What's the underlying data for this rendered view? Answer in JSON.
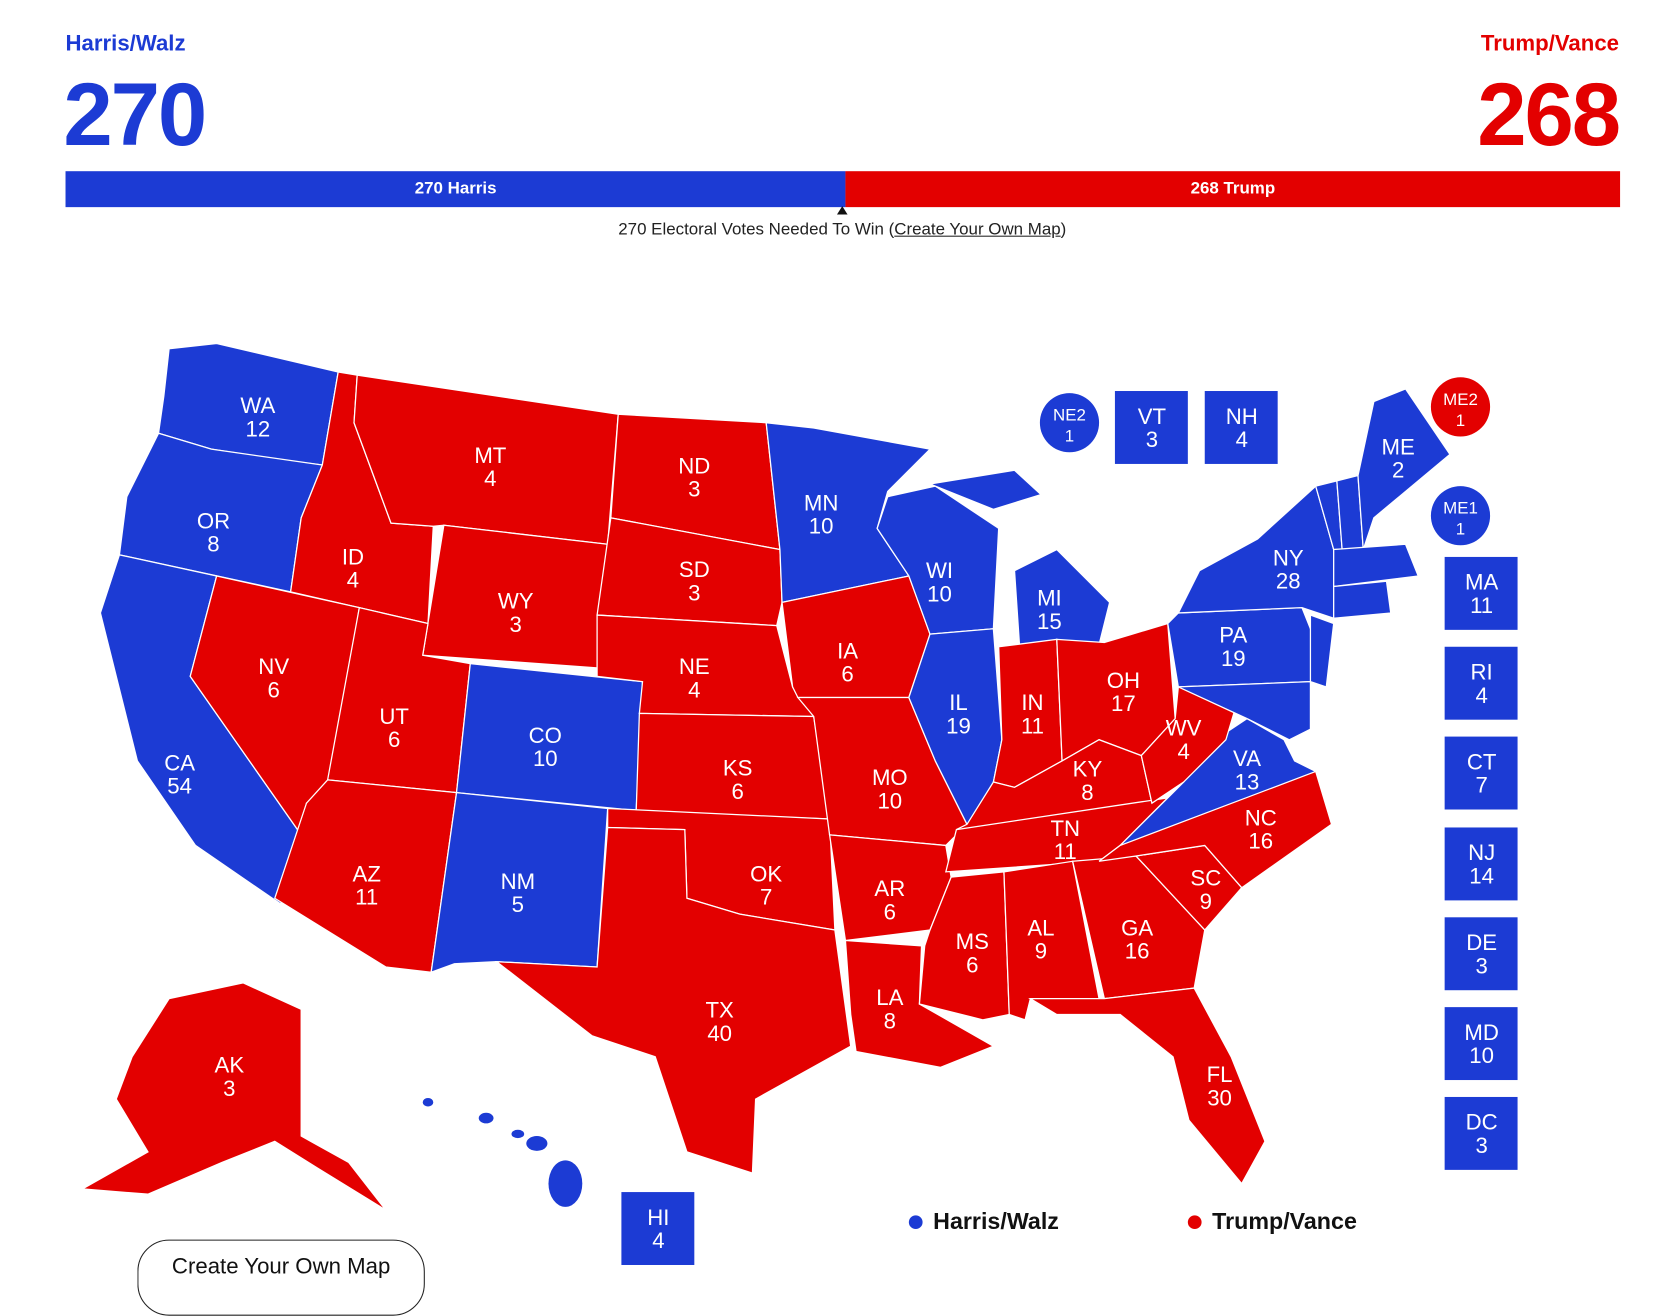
{
  "colors": {
    "dem": "#1c3bd4",
    "rep": "#e30000"
  },
  "header": {
    "dem": {
      "ticket": "Harris/Walz",
      "votes": "270",
      "bar_label": "270 Harris",
      "ev": 270
    },
    "rep": {
      "ticket": "Trump/Vance",
      "votes": "268",
      "bar_label": "268 Trump",
      "ev": 268
    },
    "needed_text": "270 Electoral Votes Needed To Win (",
    "needed_link": "Create Your Own Map",
    "needed_close": ")"
  },
  "states": [
    {
      "abbr": "WA",
      "ev": "12",
      "winner": "dem"
    },
    {
      "abbr": "OR",
      "ev": "8",
      "winner": "dem"
    },
    {
      "abbr": "CA",
      "ev": "54",
      "winner": "dem"
    },
    {
      "abbr": "ID",
      "ev": "4",
      "winner": "rep"
    },
    {
      "abbr": "NV",
      "ev": "6",
      "winner": "rep"
    },
    {
      "abbr": "MT",
      "ev": "4",
      "winner": "rep"
    },
    {
      "abbr": "WY",
      "ev": "3",
      "winner": "rep"
    },
    {
      "abbr": "UT",
      "ev": "6",
      "winner": "rep"
    },
    {
      "abbr": "CO",
      "ev": "10",
      "winner": "dem"
    },
    {
      "abbr": "AZ",
      "ev": "11",
      "winner": "rep"
    },
    {
      "abbr": "NM",
      "ev": "5",
      "winner": "dem"
    },
    {
      "abbr": "ND",
      "ev": "3",
      "winner": "rep"
    },
    {
      "abbr": "SD",
      "ev": "3",
      "winner": "rep"
    },
    {
      "abbr": "NE",
      "ev": "4",
      "winner": "rep"
    },
    {
      "abbr": "KS",
      "ev": "6",
      "winner": "rep"
    },
    {
      "abbr": "OK",
      "ev": "7",
      "winner": "rep"
    },
    {
      "abbr": "TX",
      "ev": "40",
      "winner": "rep"
    },
    {
      "abbr": "MN",
      "ev": "10",
      "winner": "dem"
    },
    {
      "abbr": "IA",
      "ev": "6",
      "winner": "rep"
    },
    {
      "abbr": "MO",
      "ev": "10",
      "winner": "rep"
    },
    {
      "abbr": "AR",
      "ev": "6",
      "winner": "rep"
    },
    {
      "abbr": "LA",
      "ev": "8",
      "winner": "rep"
    },
    {
      "abbr": "WI",
      "ev": "10",
      "winner": "dem"
    },
    {
      "abbr": "IL",
      "ev": "19",
      "winner": "dem"
    },
    {
      "abbr": "MI",
      "ev": "15",
      "winner": "dem"
    },
    {
      "abbr": "IN",
      "ev": "11",
      "winner": "rep"
    },
    {
      "abbr": "OH",
      "ev": "17",
      "winner": "rep"
    },
    {
      "abbr": "KY",
      "ev": "8",
      "winner": "rep"
    },
    {
      "abbr": "TN",
      "ev": "11",
      "winner": "rep"
    },
    {
      "abbr": "MS",
      "ev": "6",
      "winner": "rep"
    },
    {
      "abbr": "AL",
      "ev": "9",
      "winner": "rep"
    },
    {
      "abbr": "GA",
      "ev": "16",
      "winner": "rep"
    },
    {
      "abbr": "SC",
      "ev": "9",
      "winner": "rep"
    },
    {
      "abbr": "NC",
      "ev": "16",
      "winner": "rep"
    },
    {
      "abbr": "FL",
      "ev": "30",
      "winner": "rep"
    },
    {
      "abbr": "VA",
      "ev": "13",
      "winner": "dem"
    },
    {
      "abbr": "WV",
      "ev": "4",
      "winner": "rep"
    },
    {
      "abbr": "PA",
      "ev": "19",
      "winner": "dem"
    },
    {
      "abbr": "NY",
      "ev": "28",
      "winner": "dem"
    },
    {
      "abbr": "ME",
      "ev": "2",
      "winner": "dem"
    },
    {
      "abbr": "AK",
      "ev": "3",
      "winner": "rep"
    }
  ],
  "small_states": [
    {
      "abbr": "NE2",
      "ev": "1",
      "winner": "dem",
      "shape": "circle"
    },
    {
      "abbr": "VT",
      "ev": "3",
      "winner": "dem",
      "shape": "box"
    },
    {
      "abbr": "NH",
      "ev": "4",
      "winner": "dem",
      "shape": "box"
    },
    {
      "abbr": "ME2",
      "ev": "1",
      "winner": "rep",
      "shape": "circle"
    },
    {
      "abbr": "ME1",
      "ev": "1",
      "winner": "dem",
      "shape": "circle"
    },
    {
      "abbr": "MA",
      "ev": "11",
      "winner": "dem",
      "shape": "box"
    },
    {
      "abbr": "RI",
      "ev": "4",
      "winner": "dem",
      "shape": "box"
    },
    {
      "abbr": "CT",
      "ev": "7",
      "winner": "dem",
      "shape": "box"
    },
    {
      "abbr": "NJ",
      "ev": "14",
      "winner": "dem",
      "shape": "box"
    },
    {
      "abbr": "DE",
      "ev": "3",
      "winner": "dem",
      "shape": "box"
    },
    {
      "abbr": "MD",
      "ev": "10",
      "winner": "dem",
      "shape": "box"
    },
    {
      "abbr": "DC",
      "ev": "3",
      "winner": "dem",
      "shape": "box"
    },
    {
      "abbr": "HI",
      "ev": "4",
      "winner": "dem",
      "shape": "box"
    }
  ],
  "legend": {
    "dem": "Harris/Walz",
    "rep": "Trump/Vance"
  },
  "button": {
    "label": "Create Your Own Map"
  }
}
